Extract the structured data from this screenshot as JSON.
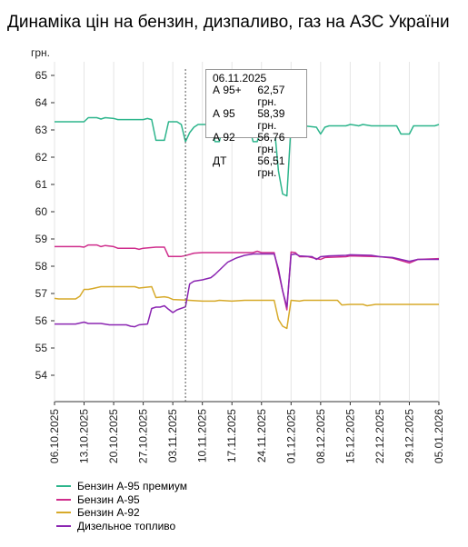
{
  "title": "Динаміка цін на бензин, дизпаливо, газ на АЗС України",
  "chart_data": {
    "type": "line",
    "ylabel": "грн.",
    "ylim": [
      53,
      65
    ],
    "yticks": [
      54,
      55,
      56,
      57,
      58,
      59,
      60,
      61,
      62,
      63,
      64,
      65
    ],
    "x_start": "2025-10-06",
    "x_end": "2026-01-05",
    "xtick_labels": [
      "06.10.2025",
      "13.10.2025",
      "20.10.2025",
      "27.10.2025",
      "03.11.2025",
      "10.11.2025",
      "17.11.2025",
      "24.11.2025",
      "01.12.2025",
      "08.12.2025",
      "15.12.2025",
      "22.12.2025",
      "29.12.2025",
      "05.01.2026"
    ],
    "grid": "vertical",
    "legend_position": "bottom",
    "series": [
      {
        "name": "Бензин А-95 премиум",
        "color": "#2db58c",
        "points": [
          [
            "2025-10-06",
            63.3
          ],
          [
            "2025-10-13",
            63.3
          ],
          [
            "2025-10-14",
            63.45
          ],
          [
            "2025-10-16",
            63.45
          ],
          [
            "2025-10-17",
            63.4
          ],
          [
            "2025-10-18",
            63.45
          ],
          [
            "2025-10-20",
            63.42
          ],
          [
            "2025-10-21",
            63.38
          ],
          [
            "2025-10-27",
            63.38
          ],
          [
            "2025-10-28",
            63.42
          ],
          [
            "2025-10-29",
            63.38
          ],
          [
            "2025-10-30",
            62.62
          ],
          [
            "2025-11-01",
            62.62
          ],
          [
            "2025-11-02",
            63.3
          ],
          [
            "2025-11-04",
            63.3
          ],
          [
            "2025-11-05",
            63.2
          ],
          [
            "2025-11-06",
            62.57
          ],
          [
            "2025-11-07",
            62.9
          ],
          [
            "2025-11-08",
            63.1
          ],
          [
            "2025-11-09",
            63.2
          ],
          [
            "2025-11-12",
            63.2
          ],
          [
            "2025-11-13",
            62.57
          ],
          [
            "2025-11-14",
            62.57
          ],
          [
            "2025-11-15",
            63.2
          ],
          [
            "2025-11-21",
            63.2
          ],
          [
            "2025-11-22",
            62.57
          ],
          [
            "2025-11-23",
            62.57
          ],
          [
            "2025-11-24",
            63.2
          ],
          [
            "2025-11-27",
            63.2
          ],
          [
            "2025-11-28",
            61.5
          ],
          [
            "2025-11-29",
            60.65
          ],
          [
            "2025-11-30",
            60.58
          ],
          [
            "2025-12-01",
            63.2
          ],
          [
            "2025-12-07",
            63.1
          ],
          [
            "2025-12-08",
            62.85
          ],
          [
            "2025-12-09",
            63.1
          ],
          [
            "2025-12-10",
            63.15
          ],
          [
            "2025-12-14",
            63.15
          ],
          [
            "2025-12-15",
            63.2
          ],
          [
            "2025-12-16",
            63.18
          ],
          [
            "2025-12-17",
            63.15
          ],
          [
            "2025-12-18",
            63.2
          ],
          [
            "2025-12-20",
            63.15
          ],
          [
            "2025-12-26",
            63.15
          ],
          [
            "2025-12-27",
            62.85
          ],
          [
            "2025-12-29",
            62.85
          ],
          [
            "2025-12-30",
            63.15
          ],
          [
            "2026-01-04",
            63.15
          ],
          [
            "2026-01-05",
            63.2
          ]
        ]
      },
      {
        "name": "Бензин А-95",
        "color": "#cf2d8c",
        "points": [
          [
            "2025-10-06",
            58.72
          ],
          [
            "2025-10-12",
            58.72
          ],
          [
            "2025-10-13",
            58.7
          ],
          [
            "2025-10-14",
            58.78
          ],
          [
            "2025-10-16",
            58.78
          ],
          [
            "2025-10-17",
            58.72
          ],
          [
            "2025-10-18",
            58.76
          ],
          [
            "2025-10-20",
            58.72
          ],
          [
            "2025-10-21",
            58.66
          ],
          [
            "2025-10-25",
            58.66
          ],
          [
            "2025-10-26",
            58.62
          ],
          [
            "2025-10-27",
            58.66
          ],
          [
            "2025-10-30",
            58.7
          ],
          [
            "2025-11-01",
            58.7
          ],
          [
            "2025-11-02",
            58.36
          ],
          [
            "2025-11-05",
            58.36
          ],
          [
            "2025-11-06",
            58.39
          ],
          [
            "2025-11-08",
            58.48
          ],
          [
            "2025-11-10",
            58.5
          ],
          [
            "2025-11-22",
            58.5
          ],
          [
            "2025-11-23",
            58.55
          ],
          [
            "2025-11-24",
            58.5
          ],
          [
            "2025-11-27",
            58.5
          ],
          [
            "2025-11-28",
            57.8
          ],
          [
            "2025-11-29",
            57.1
          ],
          [
            "2025-11-30",
            56.4
          ],
          [
            "2025-12-01",
            58.52
          ],
          [
            "2025-12-02",
            58.5
          ],
          [
            "2025-12-03",
            58.35
          ],
          [
            "2025-12-05",
            58.35
          ],
          [
            "2025-12-07",
            58.28
          ],
          [
            "2025-12-08",
            58.25
          ],
          [
            "2025-12-09",
            58.32
          ],
          [
            "2025-12-14",
            58.35
          ],
          [
            "2025-12-15",
            58.38
          ],
          [
            "2025-12-22",
            58.35
          ],
          [
            "2025-12-25",
            58.3
          ],
          [
            "2025-12-29",
            58.12
          ],
          [
            "2025-12-31",
            58.25
          ],
          [
            "2026-01-05",
            58.28
          ]
        ]
      },
      {
        "name": "Бензин А-92",
        "color": "#d7aa2a",
        "points": [
          [
            "2025-10-06",
            56.82
          ],
          [
            "2025-10-07",
            56.8
          ],
          [
            "2025-10-11",
            56.8
          ],
          [
            "2025-10-12",
            56.9
          ],
          [
            "2025-10-13",
            57.15
          ],
          [
            "2025-10-14",
            57.15
          ],
          [
            "2025-10-15",
            57.18
          ],
          [
            "2025-10-17",
            57.25
          ],
          [
            "2025-10-25",
            57.25
          ],
          [
            "2025-10-26",
            57.2
          ],
          [
            "2025-10-29",
            57.25
          ],
          [
            "2025-10-30",
            56.85
          ],
          [
            "2025-11-01",
            56.88
          ],
          [
            "2025-11-02",
            56.85
          ],
          [
            "2025-11-03",
            56.78
          ],
          [
            "2025-11-06",
            56.76
          ],
          [
            "2025-11-10",
            56.72
          ],
          [
            "2025-11-13",
            56.72
          ],
          [
            "2025-11-14",
            56.75
          ],
          [
            "2025-11-17",
            56.72
          ],
          [
            "2025-11-20",
            56.75
          ],
          [
            "2025-11-27",
            56.75
          ],
          [
            "2025-11-28",
            56.05
          ],
          [
            "2025-11-29",
            55.8
          ],
          [
            "2025-11-30",
            55.72
          ],
          [
            "2025-12-01",
            56.75
          ],
          [
            "2025-12-03",
            56.72
          ],
          [
            "2025-12-04",
            56.75
          ],
          [
            "2025-12-12",
            56.75
          ],
          [
            "2025-12-13",
            56.58
          ],
          [
            "2025-12-15",
            56.6
          ],
          [
            "2025-12-18",
            56.6
          ],
          [
            "2025-12-19",
            56.55
          ],
          [
            "2025-12-21",
            56.6
          ],
          [
            "2026-01-05",
            56.6
          ]
        ]
      },
      {
        "name": "Дизельное топливо",
        "color": "#8b26b2",
        "points": [
          [
            "2025-10-06",
            55.88
          ],
          [
            "2025-10-11",
            55.88
          ],
          [
            "2025-10-13",
            55.95
          ],
          [
            "2025-10-14",
            55.9
          ],
          [
            "2025-10-17",
            55.9
          ],
          [
            "2025-10-19",
            55.85
          ],
          [
            "2025-10-23",
            55.85
          ],
          [
            "2025-10-24",
            55.8
          ],
          [
            "2025-10-25",
            55.78
          ],
          [
            "2025-10-26",
            55.85
          ],
          [
            "2025-10-28",
            55.88
          ],
          [
            "2025-10-29",
            56.45
          ],
          [
            "2025-10-30",
            56.5
          ],
          [
            "2025-10-31",
            56.5
          ],
          [
            "2025-11-01",
            56.55
          ],
          [
            "2025-11-02",
            56.42
          ],
          [
            "2025-11-03",
            56.3
          ],
          [
            "2025-11-04",
            56.4
          ],
          [
            "2025-11-06",
            56.51
          ],
          [
            "2025-11-07",
            57.35
          ],
          [
            "2025-11-08",
            57.45
          ],
          [
            "2025-11-10",
            57.5
          ],
          [
            "2025-11-12",
            57.58
          ],
          [
            "2025-11-13",
            57.7
          ],
          [
            "2025-11-15",
            58.0
          ],
          [
            "2025-11-16",
            58.15
          ],
          [
            "2025-11-18",
            58.3
          ],
          [
            "2025-11-20",
            58.4
          ],
          [
            "2025-11-22",
            58.45
          ],
          [
            "2025-11-27",
            58.45
          ],
          [
            "2025-11-28",
            57.9
          ],
          [
            "2025-11-29",
            57.1
          ],
          [
            "2025-11-30",
            56.5
          ],
          [
            "2025-12-01",
            58.42
          ],
          [
            "2025-12-02",
            58.45
          ],
          [
            "2025-12-03",
            58.38
          ],
          [
            "2025-12-06",
            58.35
          ],
          [
            "2025-12-07",
            58.25
          ],
          [
            "2025-12-08",
            58.35
          ],
          [
            "2025-12-10",
            58.38
          ],
          [
            "2025-12-14",
            58.4
          ],
          [
            "2025-12-15",
            58.42
          ],
          [
            "2025-12-20",
            58.4
          ],
          [
            "2025-12-22",
            58.35
          ],
          [
            "2025-12-25",
            58.32
          ],
          [
            "2025-12-29",
            58.18
          ],
          [
            "2025-12-31",
            58.25
          ],
          [
            "2026-01-05",
            58.25
          ]
        ]
      }
    ],
    "crosshair": {
      "date": "2025-11-06",
      "style": "dotted"
    },
    "tooltip": {
      "date_label": "06.11.2025",
      "rows": [
        {
          "name": "А 95+",
          "value": "62,57 грн."
        },
        {
          "name": "А 95",
          "value": "58,39 грн."
        },
        {
          "name": "А 92",
          "value": "56,76 грн."
        },
        {
          "name": "ДТ",
          "value": "56,51 грн."
        }
      ]
    }
  },
  "legend": {
    "items": [
      {
        "label": "Бензин А-95 премиум",
        "color": "#2db58c"
      },
      {
        "label": "Бензин А-95",
        "color": "#cf2d8c"
      },
      {
        "label": "Бензин А-92",
        "color": "#d7aa2a"
      },
      {
        "label": "Дизельное топливо",
        "color": "#8b26b2"
      }
    ]
  }
}
